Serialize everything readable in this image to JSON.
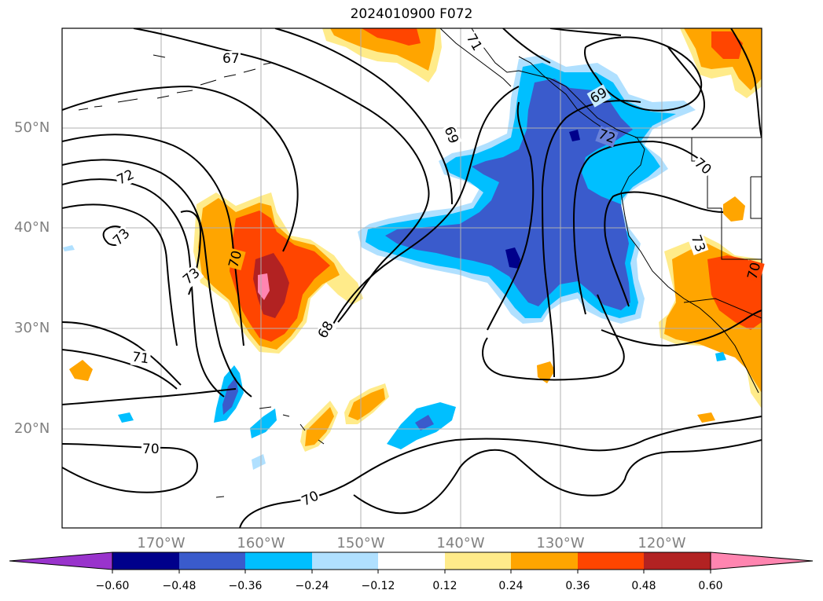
{
  "title": "2024010900 F072",
  "map": {
    "lat_labels": [
      "50°N",
      "40°N",
      "30°N",
      "20°N"
    ],
    "lon_labels": [
      "170°W",
      "160°W",
      "150°W",
      "140°W",
      "130°W",
      "120°W"
    ],
    "contour_labels": [
      "67",
      "69",
      "69",
      "72",
      "72",
      "73",
      "73",
      "73",
      "70",
      "70",
      "70",
      "70",
      "70",
      "71",
      "71",
      "68"
    ]
  },
  "colorbar": {
    "ticks": [
      "−0.60",
      "−0.48",
      "−0.36",
      "−0.24",
      "−0.12",
      "0.12",
      "0.24",
      "0.36",
      "0.48",
      "0.60"
    ],
    "colors": [
      "#9933cc",
      "#00008b",
      "#3a5bcc",
      "#00bfff",
      "#b0e0ff",
      "#ffffff",
      "#ffeb8a",
      "#ffa500",
      "#ff4500",
      "#b22222",
      "#ff85b0"
    ]
  }
}
